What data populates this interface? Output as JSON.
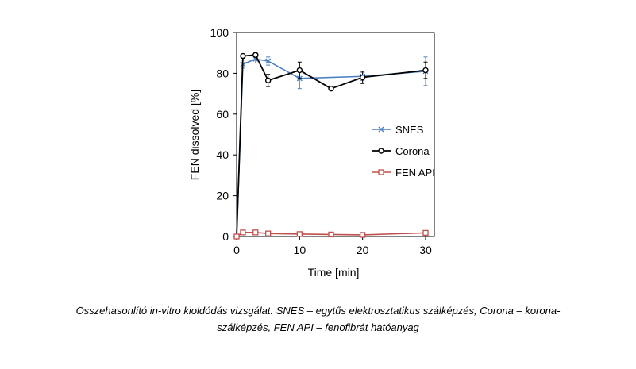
{
  "chart_data": {
    "type": "line",
    "xlabel": "Time [min]",
    "ylabel": "FEN dissolved [%]",
    "xlim": [
      0,
      30
    ],
    "ylim": [
      0,
      100
    ],
    "xticks": [
      "0",
      "10",
      "20",
      "30"
    ],
    "yticks": [
      "0",
      "20",
      "40",
      "60",
      "80",
      "100"
    ],
    "grid": false,
    "legend_position": "right-middle",
    "series": [
      {
        "name": "SNES",
        "color": "#4a7fc1",
        "marker": "x",
        "x": [
          0,
          1,
          3,
          5,
          10,
          20,
          30
        ],
        "y": [
          0,
          84.5,
          87,
          86,
          77.5,
          78.5,
          81
        ],
        "err": [
          0,
          2,
          2,
          2,
          5,
          2,
          7
        ]
      },
      {
        "name": "Corona",
        "color": "#000000",
        "marker": "circle",
        "x": [
          0,
          1,
          3,
          5,
          10,
          15,
          20,
          30
        ],
        "y": [
          0,
          88.5,
          89,
          76.5,
          81.5,
          72.5,
          78,
          81.5
        ],
        "err": [
          0,
          1,
          1,
          3,
          4,
          0,
          3,
          4
        ]
      },
      {
        "name": "FEN API",
        "color": "#c0504d",
        "marker": "square",
        "x": [
          0,
          1,
          3,
          5,
          10,
          15,
          20,
          30
        ],
        "y": [
          0,
          2,
          2,
          1.5,
          1.2,
          1,
          0.8,
          1.8
        ],
        "err": [
          0,
          0,
          0,
          0,
          0,
          0,
          0,
          0
        ]
      }
    ]
  },
  "caption": {
    "line1": "Összehasonlító in-vitro kioldódás vizsgálat. SNES – egytűs elektrosztatikus szálképzés, Corona – korona-",
    "line2": "szálképzés, FEN API – fenofibrát hatóanyag"
  }
}
